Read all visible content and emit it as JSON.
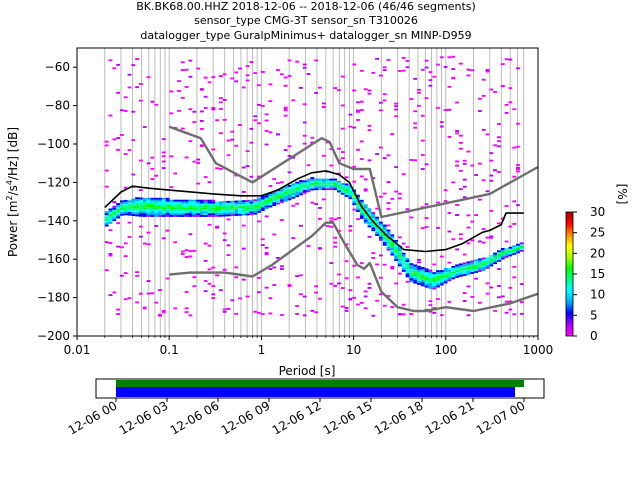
{
  "chart_data": {
    "type": "heatmap",
    "title_lines": [
      "BK.BK68.00.HHZ   2018-12-06 -- 2018-12-06  (46/46 segments)",
      "sensor_type CMG-3T sensor_sn T310026",
      "datalogger_type GuralpMinimus+ datalogger_sn MINP-D959"
    ],
    "xlabel": "Period [s]",
    "ylabel_parts": [
      "Power [m",
      "2",
      "/s",
      "4",
      "/Hz] [dB]"
    ],
    "x_scale": "log",
    "xlim": [
      0.01,
      1000
    ],
    "ylim": [
      -200,
      -50
    ],
    "x_ticks": [
      {
        "v": 0.01,
        "label": "0.01"
      },
      {
        "v": 0.1,
        "label": "0.1"
      },
      {
        "v": 1,
        "label": "1"
      },
      {
        "v": 10,
        "label": "10"
      },
      {
        "v": 100,
        "label": "100"
      },
      {
        "v": 1000,
        "label": "1000"
      }
    ],
    "y_ticks": [
      {
        "v": -60,
        "label": "−60"
      },
      {
        "v": -80,
        "label": "−80"
      },
      {
        "v": -100,
        "label": "−100"
      },
      {
        "v": -120,
        "label": "−120"
      },
      {
        "v": -140,
        "label": "−140"
      },
      {
        "v": -160,
        "label": "−160"
      },
      {
        "v": -180,
        "label": "−180"
      },
      {
        "v": -200,
        "label": "−200"
      }
    ],
    "colorbar": {
      "label": "[%]",
      "range": [
        0,
        30
      ],
      "ticks": [
        {
          "v": 0,
          "label": "0"
        },
        {
          "v": 5,
          "label": "5"
        },
        {
          "v": 10,
          "label": "10"
        },
        {
          "v": 15,
          "label": "15"
        },
        {
          "v": 20,
          "label": "20"
        },
        {
          "v": 25,
          "label": "25"
        },
        {
          "v": 30,
          "label": "30"
        }
      ],
      "colors": [
        "#ff00ff",
        "#b000ff",
        "#0000ff",
        "#00aaff",
        "#00ffff",
        "#00ff88",
        "#00ff00",
        "#aaff00",
        "#ffff00",
        "#ff8800",
        "#ff0000",
        "#aa0000"
      ]
    },
    "model_curves": {
      "NHNM": [
        [
          0.1,
          -91
        ],
        [
          0.22,
          -97
        ],
        [
          0.32,
          -110
        ],
        [
          0.8,
          -120
        ],
        [
          4.5,
          -97
        ],
        [
          5.5,
          -99
        ],
        [
          7,
          -110
        ],
        [
          10,
          -113
        ],
        [
          15,
          -113
        ],
        [
          20,
          -138
        ],
        [
          300,
          -126
        ],
        [
          1000,
          -112
        ]
      ],
      "NLNM": [
        [
          0.1,
          -168
        ],
        [
          0.17,
          -167
        ],
        [
          0.4,
          -167
        ],
        [
          0.8,
          -169
        ],
        [
          1.3,
          -163
        ],
        [
          3.5,
          -148
        ],
        [
          5,
          -141
        ],
        [
          6,
          -141
        ],
        [
          8,
          -152
        ],
        [
          11,
          -163
        ],
        [
          13,
          -165
        ],
        [
          15,
          -162
        ],
        [
          20,
          -177
        ],
        [
          30,
          -185
        ],
        [
          45,
          -187
        ],
        [
          60,
          -187
        ],
        [
          100,
          -185
        ],
        [
          200,
          -187
        ],
        [
          500,
          -183
        ],
        [
          1000,
          -178
        ]
      ]
    },
    "mean_curve": [
      [
        0.02,
        -133
      ],
      [
        0.03,
        -125
      ],
      [
        0.04,
        -122
      ],
      [
        0.06,
        -123
      ],
      [
        0.1,
        -124
      ],
      [
        0.3,
        -126
      ],
      [
        0.6,
        -127
      ],
      [
        1,
        -127
      ],
      [
        1.5,
        -124
      ],
      [
        2.5,
        -118
      ],
      [
        3.5,
        -115
      ],
      [
        5,
        -114
      ],
      [
        7,
        -116
      ],
      [
        9,
        -120
      ],
      [
        12,
        -132
      ],
      [
        16,
        -140
      ],
      [
        22,
        -147
      ],
      [
        35,
        -155
      ],
      [
        60,
        -156
      ],
      [
        100,
        -155
      ],
      [
        150,
        -152
      ],
      [
        250,
        -146
      ],
      [
        300,
        -145
      ],
      [
        400,
        -142
      ],
      [
        450,
        -136
      ],
      [
        700,
        -136
      ]
    ],
    "density_band": [
      [
        0.02,
        -143,
        -136
      ],
      [
        0.03,
        -137,
        -130
      ],
      [
        0.05,
        -138,
        -128
      ],
      [
        0.1,
        -138,
        -129
      ],
      [
        0.3,
        -138,
        -130
      ],
      [
        0.8,
        -137,
        -130
      ],
      [
        1.2,
        -133,
        -126
      ],
      [
        2,
        -129,
        -121
      ],
      [
        3.5,
        -124,
        -118
      ],
      [
        6,
        -124,
        -119
      ],
      [
        9,
        -129,
        -122
      ],
      [
        12,
        -140,
        -130
      ],
      [
        16,
        -146,
        -137
      ],
      [
        25,
        -158,
        -147
      ],
      [
        40,
        -172,
        -163
      ],
      [
        70,
        -176,
        -167
      ],
      [
        120,
        -170,
        -164
      ],
      [
        250,
        -166,
        -160
      ],
      [
        400,
        -160,
        -155
      ],
      [
        650,
        -156,
        -152
      ]
    ],
    "coverage": {
      "x_ticks": [
        "12-06 00",
        "12-06 03",
        "12-06 06",
        "12-06 09",
        "12-06 12",
        "12-06 15",
        "12-06 18",
        "12-06 21",
        "12-07 00"
      ],
      "data_color": "#0000ff",
      "gap_color": "#008000"
    }
  }
}
